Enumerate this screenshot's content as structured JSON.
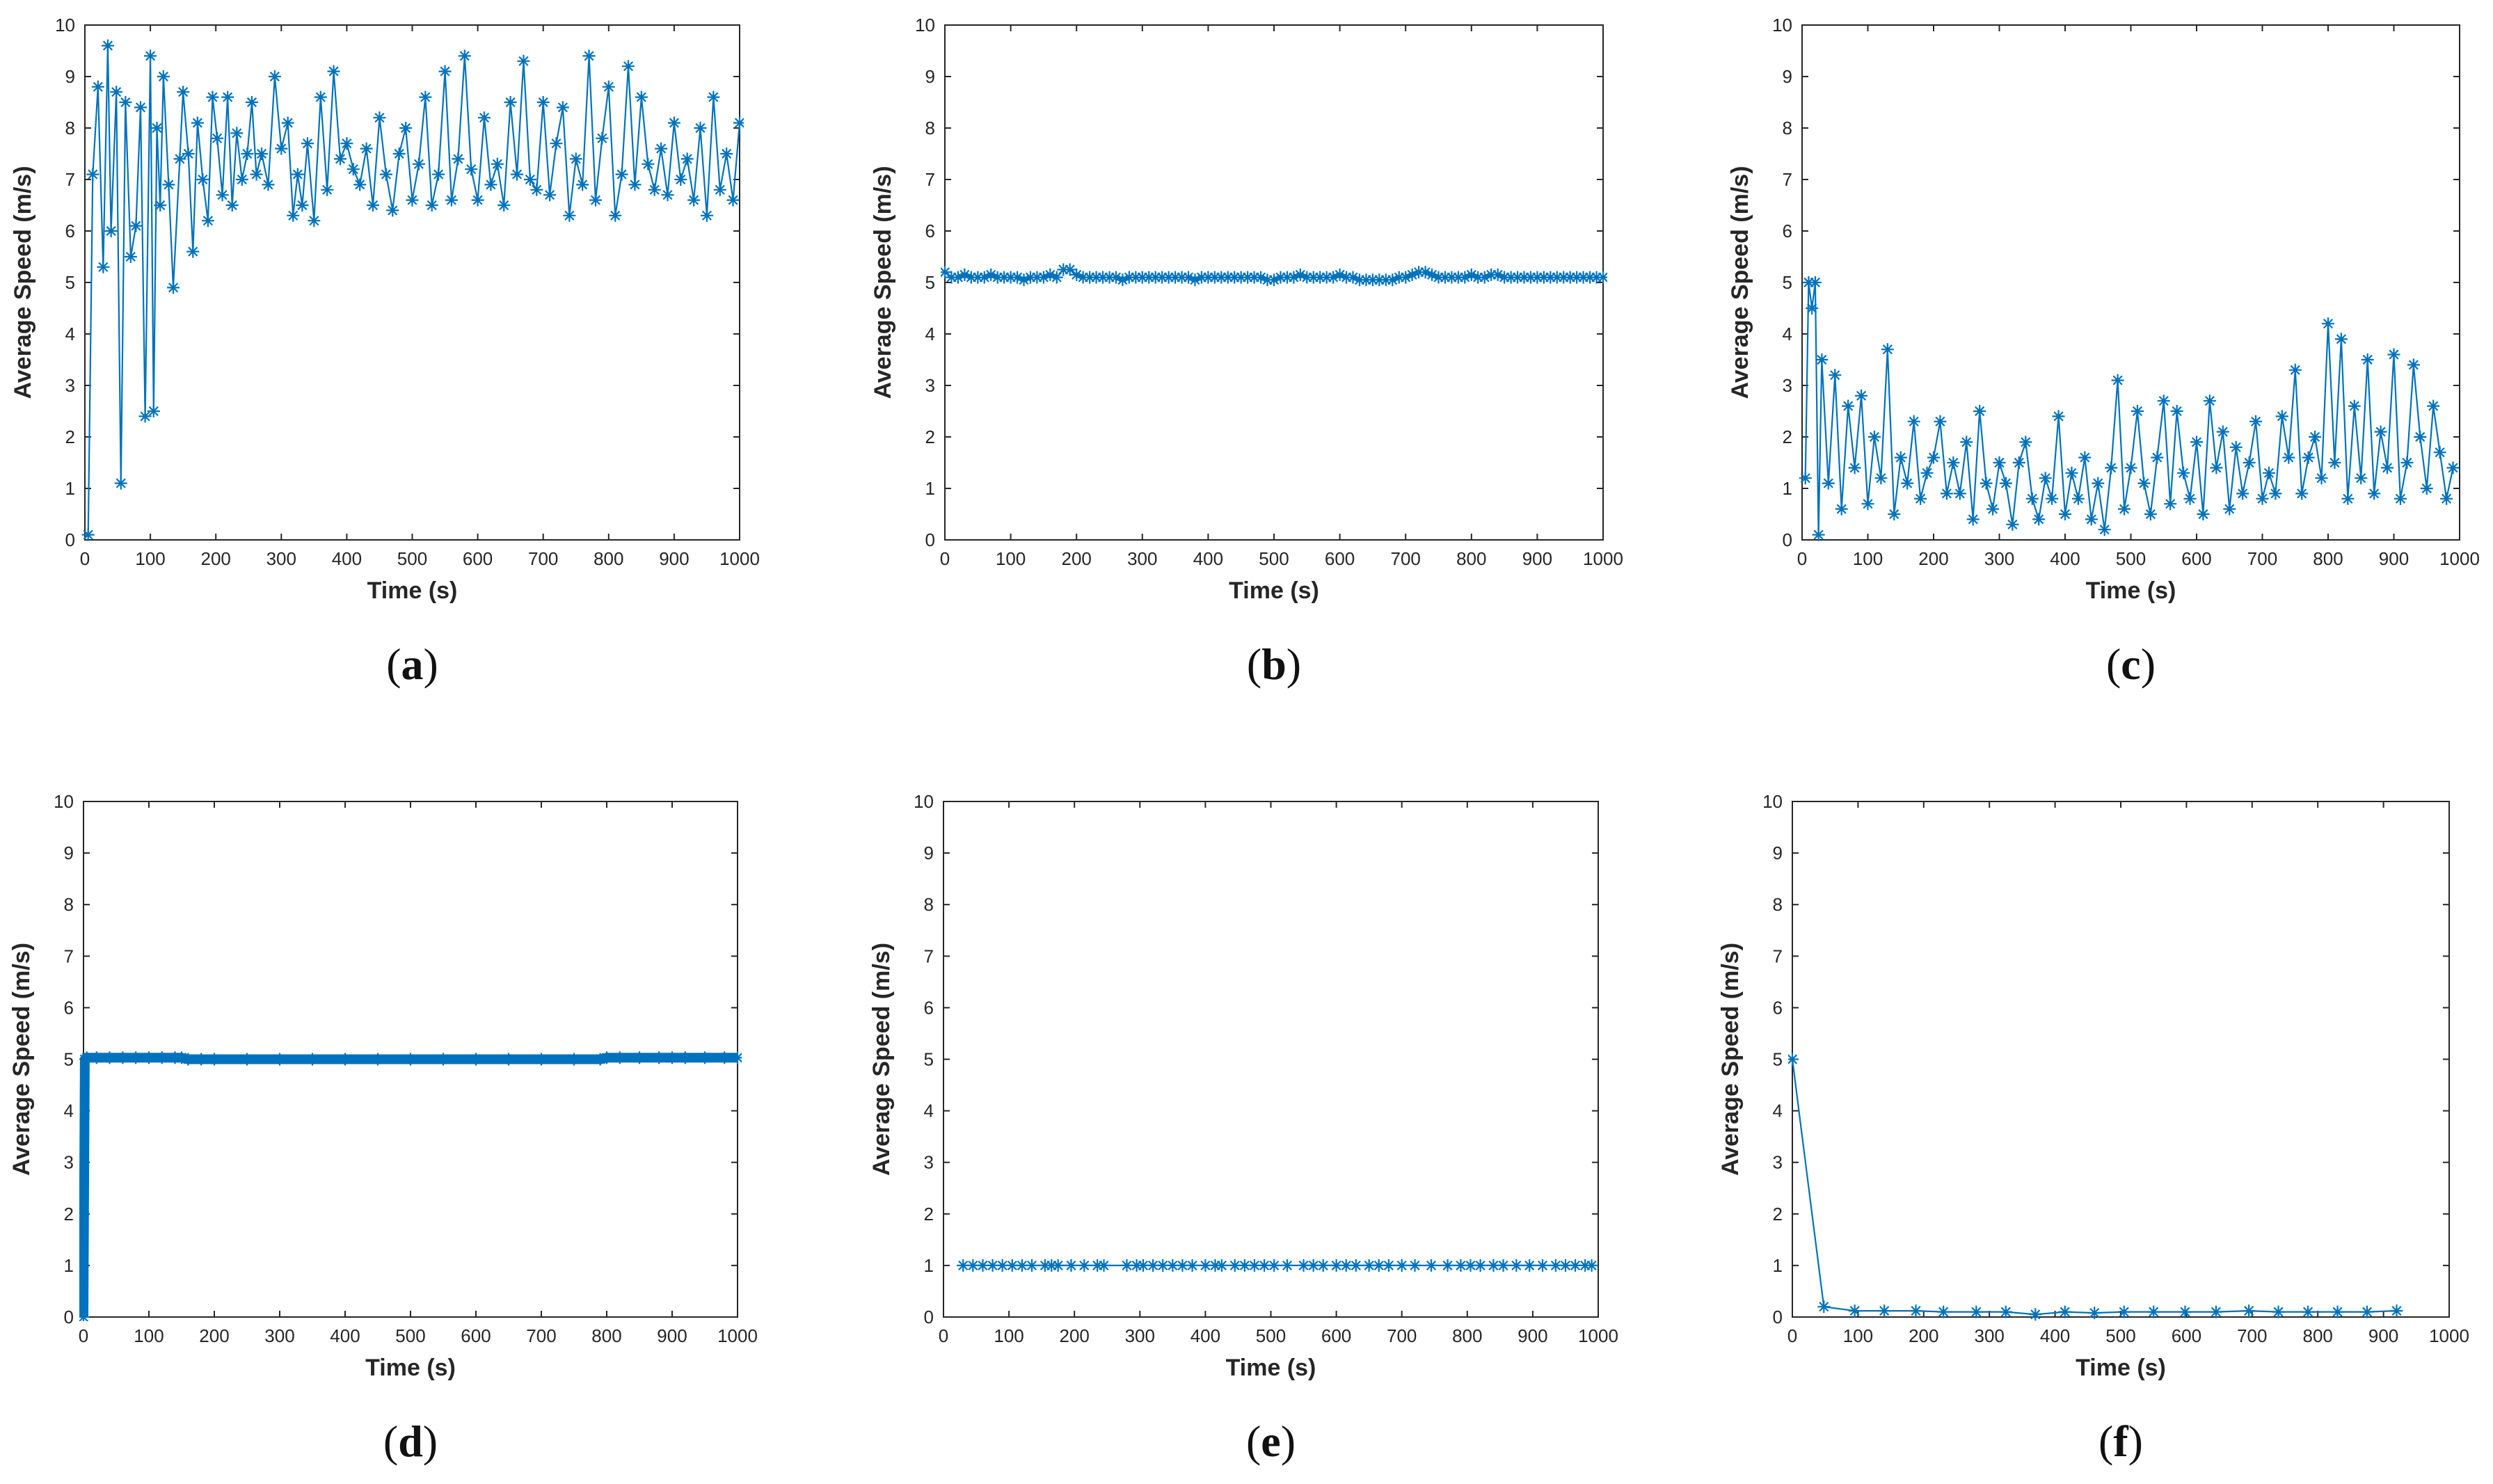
{
  "figure": {
    "series_color": "#0072BD"
  },
  "chart_data": [
    {
      "type": "line",
      "panel": "a",
      "panel_text": [
        "(",
        "a",
        ")"
      ],
      "xlabel": "Time (s)",
      "ylabel": "Average Speed (m/s)",
      "xlim": [
        0,
        1000
      ],
      "ylim": [
        0,
        10
      ],
      "xticks": [
        "0",
        "100",
        "200",
        "300",
        "400",
        "500",
        "600",
        "700",
        "800",
        "900",
        "1000"
      ],
      "yticks": [
        "0",
        "1",
        "2",
        "3",
        "4",
        "5",
        "6",
        "7",
        "8",
        "9",
        "10"
      ],
      "marker": "asterisk",
      "x": [
        5,
        12,
        20,
        28,
        35,
        40,
        48,
        55,
        62,
        70,
        78,
        85,
        92,
        100,
        105,
        110,
        115,
        120,
        128,
        135,
        145,
        150,
        158,
        165,
        172,
        180,
        188,
        195,
        202,
        210,
        218,
        225,
        232,
        240,
        248,
        255,
        262,
        270,
        280,
        290,
        300,
        310,
        318,
        325,
        332,
        340,
        350,
        360,
        370,
        380,
        390,
        400,
        410,
        420,
        430,
        440,
        450,
        460,
        470,
        480,
        490,
        500,
        510,
        520,
        530,
        540,
        550,
        560,
        570,
        580,
        590,
        600,
        610,
        620,
        630,
        640,
        650,
        660,
        670,
        680,
        690,
        700,
        710,
        720,
        730,
        740,
        750,
        760,
        770,
        780,
        790,
        800,
        810,
        820,
        830,
        840,
        850,
        860,
        870,
        880,
        890,
        900,
        910,
        920,
        930,
        940,
        950,
        960,
        970,
        980,
        990,
        1000
      ],
      "values": [
        0.1,
        7.1,
        8.8,
        5.3,
        9.6,
        6.0,
        8.7,
        1.1,
        8.5,
        5.5,
        6.1,
        8.4,
        2.4,
        9.4,
        2.5,
        8.0,
        6.5,
        9.0,
        6.9,
        4.9,
        7.4,
        8.7,
        7.5,
        5.6,
        8.1,
        7.0,
        6.2,
        8.6,
        7.8,
        6.7,
        8.6,
        6.5,
        7.9,
        7.0,
        7.5,
        8.5,
        7.1,
        7.5,
        6.9,
        9.0,
        7.6,
        8.1,
        6.3,
        7.1,
        6.5,
        7.7,
        6.2,
        8.6,
        6.8,
        9.1,
        7.4,
        7.7,
        7.2,
        6.9,
        7.6,
        6.5,
        8.2,
        7.1,
        6.4,
        7.5,
        8.0,
        6.6,
        7.3,
        8.6,
        6.5,
        7.1,
        9.1,
        6.6,
        7.4,
        9.4,
        7.2,
        6.6,
        8.2,
        6.9,
        7.3,
        6.5,
        8.5,
        7.1,
        9.3,
        7.0,
        6.8,
        8.5,
        6.7,
        7.7,
        8.4,
        6.3,
        7.4,
        6.9,
        9.4,
        6.6,
        7.8,
        8.8,
        6.3,
        7.1,
        9.2,
        6.9,
        8.6,
        7.3,
        6.8,
        7.6,
        6.7,
        8.1,
        7.0,
        7.4,
        6.6,
        8.0,
        6.3,
        8.6,
        6.8,
        7.5,
        6.6,
        8.1
      ]
    },
    {
      "type": "line",
      "panel": "b",
      "panel_text": [
        "(",
        "b",
        ")"
      ],
      "xlabel": "Time (s)",
      "ylabel": "Average Speed (m/s)",
      "xlim": [
        0,
        1000
      ],
      "ylim": [
        0,
        10
      ],
      "xticks": [
        "0",
        "100",
        "200",
        "300",
        "400",
        "500",
        "600",
        "700",
        "800",
        "900",
        "1000"
      ],
      "yticks": [
        "0",
        "1",
        "2",
        "3",
        "4",
        "5",
        "6",
        "7",
        "8",
        "9",
        "10"
      ],
      "marker": "asterisk",
      "x": [
        0,
        10,
        20,
        30,
        40,
        50,
        60,
        70,
        80,
        90,
        100,
        110,
        120,
        130,
        140,
        150,
        160,
        170,
        180,
        190,
        200,
        210,
        220,
        230,
        240,
        250,
        260,
        270,
        280,
        290,
        300,
        310,
        320,
        330,
        340,
        350,
        360,
        370,
        380,
        390,
        400,
        410,
        420,
        430,
        440,
        450,
        460,
        470,
        480,
        490,
        500,
        510,
        520,
        530,
        540,
        550,
        560,
        570,
        580,
        590,
        600,
        610,
        620,
        630,
        640,
        650,
        660,
        670,
        680,
        690,
        700,
        710,
        720,
        730,
        740,
        750,
        760,
        770,
        780,
        790,
        800,
        810,
        820,
        830,
        840,
        850,
        860,
        870,
        880,
        890,
        900,
        910,
        920,
        930,
        940,
        950,
        960,
        970,
        980,
        990,
        1000
      ],
      "values": [
        5.2,
        5.1,
        5.1,
        5.15,
        5.1,
        5.1,
        5.1,
        5.15,
        5.1,
        5.1,
        5.1,
        5.1,
        5.05,
        5.1,
        5.1,
        5.1,
        5.15,
        5.1,
        5.25,
        5.25,
        5.15,
        5.1,
        5.1,
        5.1,
        5.1,
        5.1,
        5.1,
        5.05,
        5.1,
        5.1,
        5.1,
        5.1,
        5.1,
        5.1,
        5.1,
        5.1,
        5.1,
        5.1,
        5.05,
        5.1,
        5.1,
        5.1,
        5.1,
        5.1,
        5.1,
        5.1,
        5.1,
        5.1,
        5.1,
        5.05,
        5.05,
        5.1,
        5.1,
        5.1,
        5.15,
        5.1,
        5.1,
        5.1,
        5.1,
        5.1,
        5.15,
        5.1,
        5.1,
        5.05,
        5.05,
        5.05,
        5.05,
        5.05,
        5.05,
        5.1,
        5.1,
        5.15,
        5.2,
        5.2,
        5.15,
        5.1,
        5.1,
        5.1,
        5.1,
        5.1,
        5.15,
        5.1,
        5.1,
        5.15,
        5.15,
        5.1,
        5.1,
        5.1,
        5.1,
        5.1,
        5.1,
        5.1,
        5.1,
        5.1,
        5.1,
        5.1,
        5.1,
        5.1,
        5.1,
        5.1,
        5.1
      ]
    },
    {
      "type": "line",
      "panel": "c",
      "panel_text": [
        "(",
        "c",
        ")"
      ],
      "xlabel": "Time (s)",
      "ylabel": "Average Speed (m/s)",
      "xlim": [
        0,
        1000
      ],
      "ylim": [
        0,
        10
      ],
      "xticks": [
        "0",
        "100",
        "200",
        "300",
        "400",
        "500",
        "600",
        "700",
        "800",
        "900",
        "1000"
      ],
      "yticks": [
        "0",
        "1",
        "2",
        "3",
        "4",
        "5",
        "6",
        "7",
        "8",
        "9",
        "10"
      ],
      "marker": "asterisk",
      "x": [
        5,
        10,
        15,
        20,
        25,
        30,
        40,
        50,
        60,
        70,
        80,
        90,
        100,
        110,
        120,
        130,
        140,
        150,
        160,
        170,
        180,
        190,
        200,
        210,
        220,
        230,
        240,
        250,
        260,
        270,
        280,
        290,
        300,
        310,
        320,
        330,
        340,
        350,
        360,
        370,
        380,
        390,
        400,
        410,
        420,
        430,
        440,
        450,
        460,
        470,
        480,
        490,
        500,
        510,
        520,
        530,
        540,
        550,
        560,
        570,
        580,
        590,
        600,
        610,
        620,
        630,
        640,
        650,
        660,
        670,
        680,
        690,
        700,
        710,
        720,
        730,
        740,
        750,
        760,
        770,
        780,
        790,
        800,
        810,
        820,
        830,
        840,
        850,
        860,
        870,
        880,
        890,
        900,
        910,
        920,
        930,
        940,
        950,
        960,
        970,
        980,
        990
      ],
      "values": [
        1.2,
        5.0,
        4.5,
        5.0,
        0.1,
        3.5,
        1.1,
        3.2,
        0.6,
        2.6,
        1.4,
        2.8,
        0.7,
        2.0,
        1.2,
        3.7,
        0.5,
        1.6,
        1.1,
        2.3,
        0.8,
        1.3,
        1.6,
        2.3,
        0.9,
        1.5,
        0.9,
        1.9,
        0.4,
        2.5,
        1.1,
        0.6,
        1.5,
        1.1,
        0.3,
        1.5,
        1.9,
        0.8,
        0.4,
        1.2,
        0.8,
        2.4,
        0.5,
        1.3,
        0.8,
        1.6,
        0.4,
        1.1,
        0.2,
        1.4,
        3.1,
        0.6,
        1.4,
        2.5,
        1.1,
        0.5,
        1.6,
        2.7,
        0.7,
        2.5,
        1.3,
        0.8,
        1.9,
        0.5,
        2.7,
        1.4,
        2.1,
        0.6,
        1.8,
        0.9,
        1.5,
        2.3,
        0.8,
        1.3,
        0.9,
        2.4,
        1.6,
        3.3,
        0.9,
        1.6,
        2.0,
        1.2,
        4.2,
        1.5,
        3.9,
        0.8,
        2.6,
        1.2,
        3.5,
        0.9,
        2.1,
        1.4,
        3.6,
        0.8,
        1.5,
        3.4,
        2.0,
        1.0,
        2.6,
        1.7,
        0.8,
        1.4
      ]
    },
    {
      "type": "line",
      "panel": "d",
      "panel_text": [
        "(",
        "d",
        ")"
      ],
      "xlabel": "Time (s)",
      "ylabel": "Average Speed (m/s)",
      "xlim": [
        0,
        1000
      ],
      "ylim": [
        0,
        10
      ],
      "xticks": [
        "0",
        "100",
        "200",
        "300",
        "400",
        "500",
        "600",
        "700",
        "800",
        "900",
        "1000"
      ],
      "yticks": [
        "0",
        "1",
        "2",
        "3",
        "4",
        "5",
        "6",
        "7",
        "8",
        "9",
        "10"
      ],
      "marker": "asterisk",
      "x": [
        0,
        2,
        5,
        20,
        40,
        60,
        80,
        100,
        120,
        140,
        150,
        160,
        180,
        200,
        250,
        300,
        350,
        400,
        450,
        500,
        550,
        600,
        650,
        700,
        750,
        790,
        800,
        820,
        850,
        880,
        900,
        920,
        950,
        980,
        1000
      ],
      "values": [
        0,
        5.0,
        5.03,
        5.03,
        5.03,
        5.03,
        5.03,
        5.03,
        5.03,
        5.03,
        5.03,
        5.0,
        5.0,
        5.0,
        5.0,
        5.0,
        5.0,
        5.0,
        5.0,
        5.0,
        5.0,
        5.0,
        5.0,
        5.0,
        5.0,
        5.0,
        5.03,
        5.03,
        5.03,
        5.03,
        5.03,
        5.03,
        5.03,
        5.03,
        5.03
      ]
    },
    {
      "type": "line",
      "panel": "e",
      "panel_text": [
        "(",
        "e",
        ")"
      ],
      "xlabel": "Time (s)",
      "ylabel": "Average Speed (m/s)",
      "xlim": [
        0,
        1000
      ],
      "ylim": [
        0,
        10
      ],
      "xticks": [
        "0",
        "100",
        "200",
        "300",
        "400",
        "500",
        "600",
        "700",
        "800",
        "900",
        "1000"
      ],
      "yticks": [
        "0",
        "1",
        "2",
        "3",
        "4",
        "5",
        "6",
        "7",
        "8",
        "9",
        "10"
      ],
      "marker": "asterisk",
      "x": [
        30,
        45,
        60,
        75,
        90,
        105,
        120,
        135,
        155,
        165,
        175,
        195,
        215,
        235,
        245,
        280,
        295,
        305,
        320,
        335,
        350,
        365,
        380,
        400,
        415,
        425,
        445,
        460,
        475,
        490,
        505,
        525,
        550,
        565,
        580,
        600,
        615,
        630,
        650,
        665,
        680,
        700,
        720,
        745,
        770,
        790,
        805,
        820,
        840,
        855,
        875,
        895,
        915,
        935,
        950,
        965,
        980,
        990
      ],
      "values": [
        1,
        1,
        1,
        1,
        1,
        1,
        1,
        1,
        1,
        1,
        1,
        1,
        1,
        1,
        1,
        1,
        1,
        1,
        1,
        1,
        1,
        1,
        1,
        1,
        1,
        1,
        1,
        1,
        1,
        1,
        1,
        1,
        1,
        1,
        1,
        1,
        1,
        1,
        1,
        1,
        1,
        1,
        1,
        1,
        1,
        1,
        1,
        1,
        1,
        1,
        1,
        1,
        1,
        1,
        1,
        1,
        1,
        1
      ]
    },
    {
      "type": "line",
      "panel": "f",
      "panel_text": [
        "(",
        "f",
        ")"
      ],
      "xlabel": "Time (s)",
      "ylabel": "Average Speed (m/s)",
      "xlim": [
        0,
        1000
      ],
      "ylim": [
        0,
        10
      ],
      "xticks": [
        "0",
        "100",
        "200",
        "300",
        "400",
        "500",
        "600",
        "700",
        "800",
        "900",
        "1000"
      ],
      "yticks": [
        "0",
        "1",
        "2",
        "3",
        "4",
        "5",
        "6",
        "7",
        "8",
        "9",
        "10"
      ],
      "marker": "asterisk",
      "x": [
        0,
        48,
        95,
        140,
        188,
        230,
        280,
        325,
        370,
        415,
        460,
        505,
        550,
        598,
        645,
        695,
        740,
        785,
        830,
        875,
        920
      ],
      "values": [
        5.0,
        0.2,
        0.12,
        0.12,
        0.12,
        0.1,
        0.1,
        0.1,
        0.05,
        0.1,
        0.08,
        0.1,
        0.1,
        0.1,
        0.1,
        0.12,
        0.1,
        0.1,
        0.1,
        0.1,
        0.12
      ]
    }
  ]
}
